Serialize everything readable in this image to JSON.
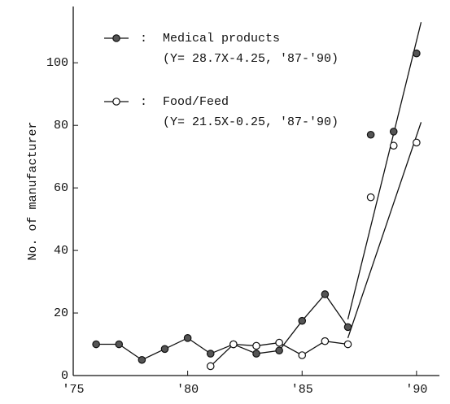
{
  "chart_data": {
    "type": "line",
    "y_label": "No. of manufacturer",
    "xlim": [
      1975,
      1991
    ],
    "xticks": [
      {
        "value": 1975,
        "label": "'75"
      },
      {
        "value": 1980,
        "label": "'80"
      },
      {
        "value": 1985,
        "label": "'85"
      },
      {
        "value": 1990,
        "label": "'90"
      }
    ],
    "ylim": [
      0,
      118
    ],
    "yticks": [
      0,
      20,
      40,
      60,
      80,
      100
    ],
    "series": [
      {
        "name": "Medical products",
        "marker": "filled",
        "color": "#555555",
        "connected_until": 1987,
        "equation": "(Y= 28.7X-4.25, '87-'90)",
        "x": [
          1976,
          1977,
          1978,
          1979,
          1980,
          1981,
          1982,
          1983,
          1984,
          1985,
          1986,
          1987,
          1988,
          1989,
          1990
        ],
        "values": [
          10,
          10,
          5,
          8.5,
          12,
          7,
          10,
          7,
          8,
          17.5,
          26,
          15.5,
          77,
          78,
          103
        ]
      },
      {
        "name": "Food/Feed",
        "marker": "open",
        "color": "#ffffff",
        "connected_until": 1987,
        "equation": "(Y= 21.5X-0.25, '87-'90)",
        "x": [
          1981,
          1982,
          1983,
          1984,
          1985,
          1986,
          1987,
          1988,
          1989,
          1990
        ],
        "values": [
          3,
          10,
          9.5,
          10.5,
          6.5,
          11,
          10,
          57,
          73.5,
          74.5
        ]
      }
    ],
    "fits": [
      {
        "x": [
          1987,
          1990.2
        ],
        "values": [
          18,
          113
        ]
      },
      {
        "x": [
          1987,
          1990.2
        ],
        "values": [
          12,
          81
        ]
      }
    ],
    "legend_separator": ":"
  }
}
